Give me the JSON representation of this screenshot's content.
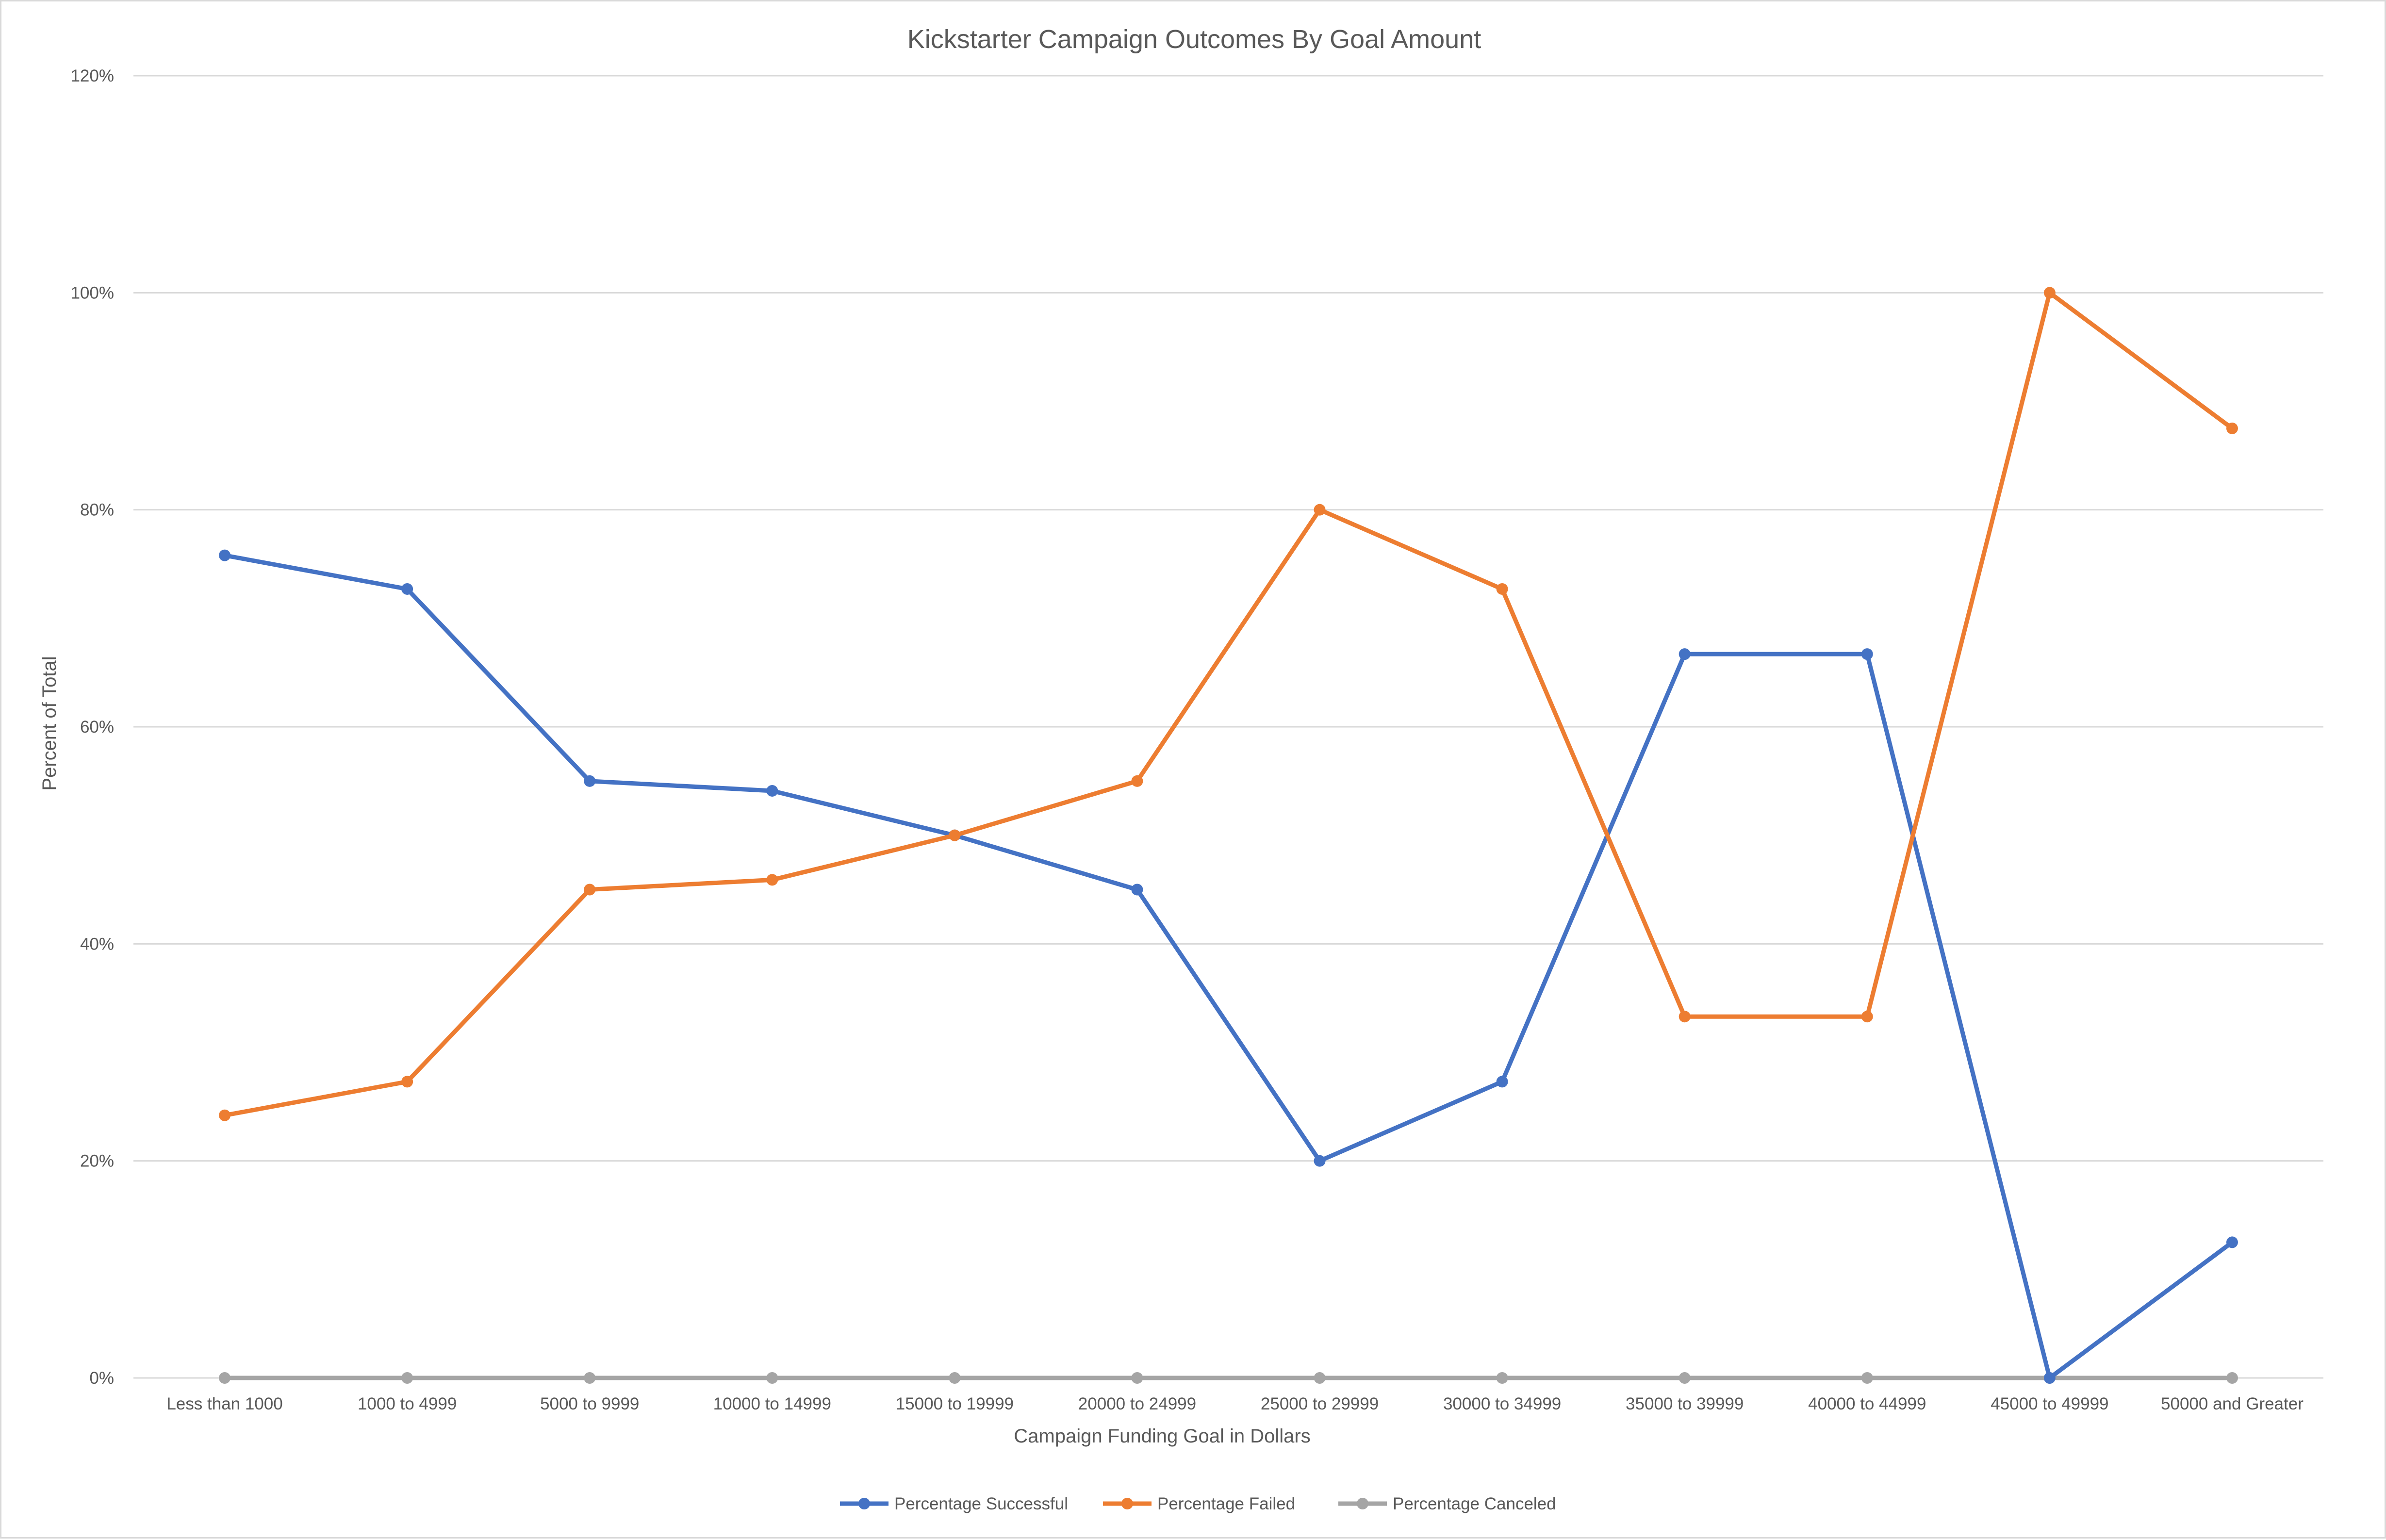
{
  "chart_data": {
    "type": "line",
    "title": "Kickstarter Campaign Outcomes By Goal Amount",
    "xlabel": "Campaign Funding Goal in Dollars",
    "ylabel": "Percent of Total",
    "categories": [
      "Less than 1000",
      "1000 to 4999",
      "5000 to 9999",
      "10000 to 14999",
      "15000 to 19999",
      "20000 to 24999",
      "25000 to 29999",
      "30000 to 34999",
      "35000 to 39999",
      "40000 to 44999",
      "45000 to 49999",
      "50000 and Greater"
    ],
    "y_ticks": [
      "0%",
      "20%",
      "40%",
      "60%",
      "80%",
      "100%",
      "120%"
    ],
    "ylim": [
      0,
      1.2
    ],
    "grid": true,
    "legend_position": "bottom",
    "series": [
      {
        "name": "Percentage Successful",
        "color": "#4472c4",
        "values": [
          0.758,
          0.727,
          0.55,
          0.541,
          0.5,
          0.45,
          0.2,
          0.273,
          0.667,
          0.667,
          0.0,
          0.125
        ]
      },
      {
        "name": "Percentage Failed",
        "color": "#ed7d31",
        "values": [
          0.242,
          0.273,
          0.45,
          0.459,
          0.5,
          0.55,
          0.8,
          0.727,
          0.333,
          0.333,
          1.0,
          0.875
        ]
      },
      {
        "name": "Percentage Canceled",
        "color": "#a5a5a5",
        "values": [
          0,
          0,
          0,
          0,
          0,
          0,
          0,
          0,
          0,
          0,
          0,
          0
        ]
      }
    ]
  }
}
